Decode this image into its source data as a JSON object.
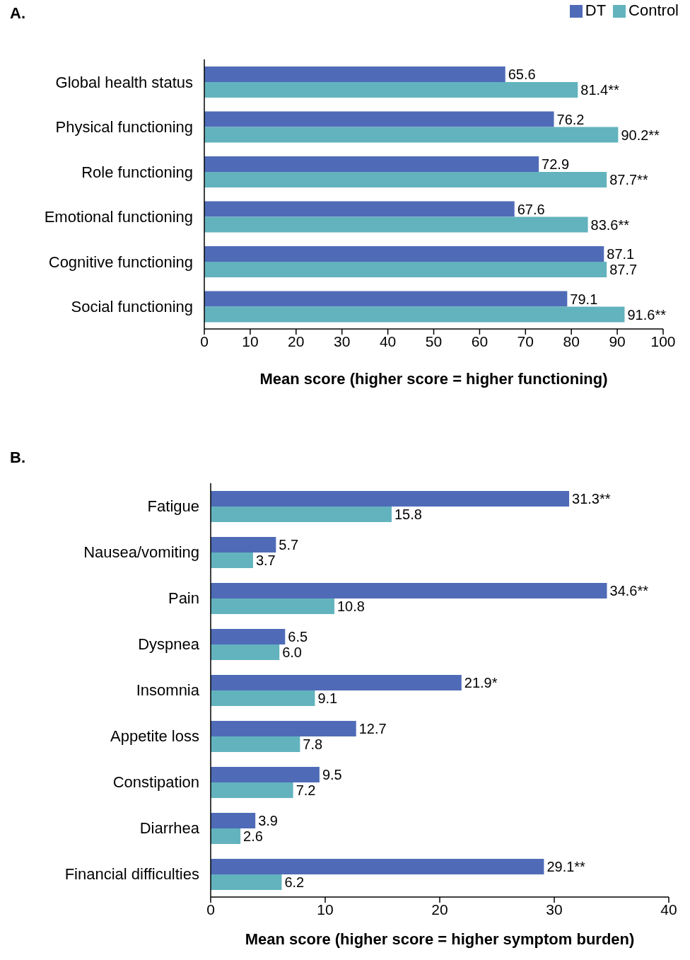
{
  "chart_data": [
    {
      "type": "bar",
      "orientation": "horizontal",
      "title": "A.",
      "xlabel": "Mean score (higher score = higher functioning)",
      "categories": [
        "Global health status",
        "Physical functioning",
        "Role functioning",
        "Emotional functioning",
        "Cognitive functioning",
        "Social functioning"
      ],
      "series": [
        {
          "name": "DT",
          "color": "#4f6bb8",
          "values": [
            65.6,
            76.2,
            72.9,
            67.6,
            87.1,
            79.1
          ],
          "value_labels": [
            "65.6",
            "76.2",
            "72.9",
            "67.6",
            "87.1",
            "79.1"
          ]
        },
        {
          "name": "Control",
          "color": "#62b3bd",
          "values": [
            81.4,
            90.2,
            87.7,
            83.6,
            87.7,
            91.6
          ],
          "value_labels": [
            "81.4**",
            "90.2**",
            "87.7**",
            "83.6**",
            "87.7",
            "91.6**"
          ]
        }
      ],
      "xlim": [
        0,
        100
      ],
      "xticks": [
        0,
        10,
        20,
        30,
        40,
        50,
        60,
        70,
        80,
        90,
        100
      ],
      "legend": "top right",
      "grid": false
    },
    {
      "type": "bar",
      "orientation": "horizontal",
      "title": "B.",
      "xlabel": "Mean score (higher score = higher symptom burden)",
      "categories": [
        "Fatigue",
        "Nausea/vomiting",
        "Pain",
        "Dyspnea",
        "Insomnia",
        "Appetite loss",
        "Constipation",
        "Diarrhea",
        "Financial difficulties"
      ],
      "series": [
        {
          "color": "#4f6bb8",
          "values": [
            31.3,
            5.7,
            34.6,
            6.5,
            21.9,
            12.7,
            9.5,
            3.9,
            29.1
          ],
          "value_labels": [
            "31.3**",
            "5.7",
            "34.6**",
            "6.5",
            "21.9*",
            "12.7",
            "9.5",
            "3.9",
            "29.1**"
          ]
        },
        {
          "color": "#62b3bd",
          "values": [
            15.8,
            3.7,
            10.8,
            6.0,
            9.1,
            7.8,
            7.2,
            2.6,
            6.2
          ],
          "value_labels": [
            "15.8",
            "3.7",
            "10.8",
            "6.0",
            "9.1",
            "7.8",
            "7.2",
            "2.6",
            "6.2"
          ]
        }
      ],
      "xlim": [
        0,
        40
      ],
      "xticks": [
        0,
        10,
        20,
        30,
        40
      ],
      "legend": false,
      "grid": false
    }
  ]
}
